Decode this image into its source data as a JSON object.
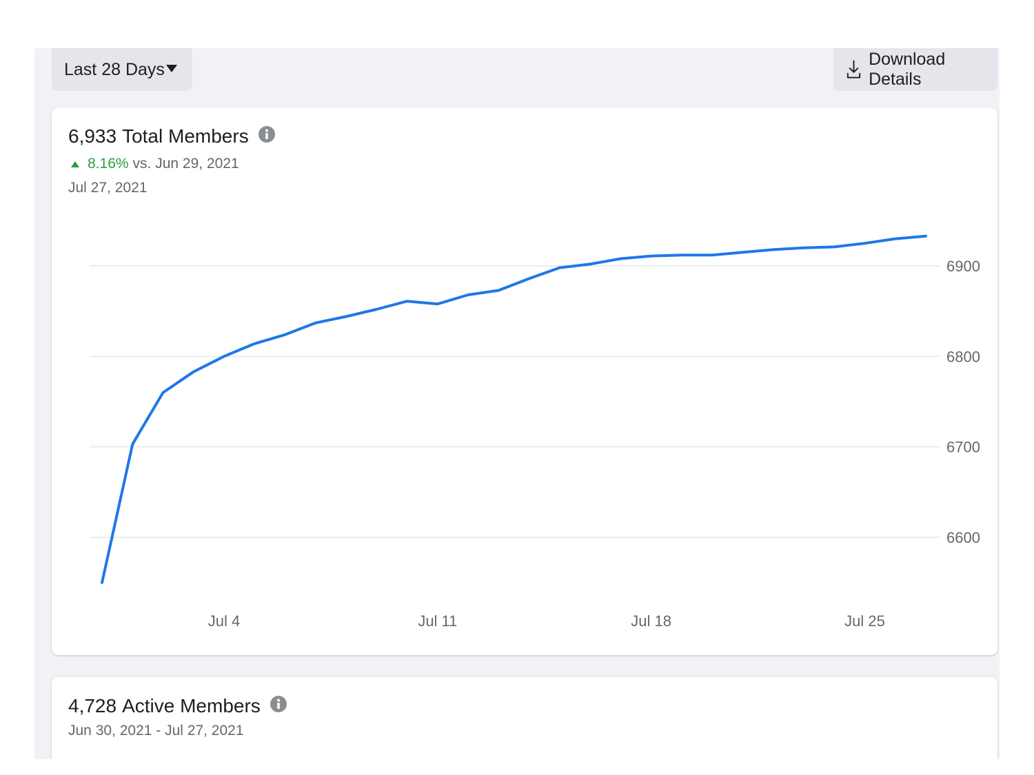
{
  "toolbar": {
    "range_label": "Last 28 Days",
    "download_label": "Download Details"
  },
  "total_members": {
    "count": "6,933",
    "label": "Total Members",
    "change_pct": "8.16%",
    "change_text": "vs. Jun 29, 2021",
    "as_of": "Jul 27, 2021"
  },
  "active_members": {
    "count": "4,728",
    "label": "Active Members",
    "range": "Jun 30, 2021 - Jul 27, 2021"
  },
  "colors": {
    "line": "#1f77e8",
    "positive": "#2e9c3f",
    "grid": "#e4e6eb"
  },
  "chart_data": {
    "type": "line",
    "x": [
      "Jun 30",
      "Jul 1",
      "Jul 2",
      "Jul 3",
      "Jul 4",
      "Jul 5",
      "Jul 6",
      "Jul 7",
      "Jul 8",
      "Jul 9",
      "Jul 10",
      "Jul 11",
      "Jul 12",
      "Jul 13",
      "Jul 14",
      "Jul 15",
      "Jul 16",
      "Jul 17",
      "Jul 18",
      "Jul 19",
      "Jul 20",
      "Jul 21",
      "Jul 22",
      "Jul 23",
      "Jul 24",
      "Jul 25",
      "Jul 26",
      "Jul 27"
    ],
    "series": [
      {
        "values": [
          6550,
          6703,
          6760,
          6783,
          6800,
          6814,
          6824,
          6837,
          6844,
          6852,
          6861,
          6858,
          6868,
          6873,
          6886,
          6898,
          6902,
          6908,
          6911,
          6912,
          6912,
          6915,
          6918,
          6920,
          6921,
          6925,
          6930,
          6933
        ]
      }
    ],
    "x_ticks": [
      "Jul 4",
      "Jul 11",
      "Jul 18",
      "Jul 25"
    ],
    "y_ticks": [
      6600,
      6700,
      6800,
      6900
    ],
    "ylim": [
      6540,
      6945
    ],
    "grid": true,
    "y_axis_side": "right"
  }
}
